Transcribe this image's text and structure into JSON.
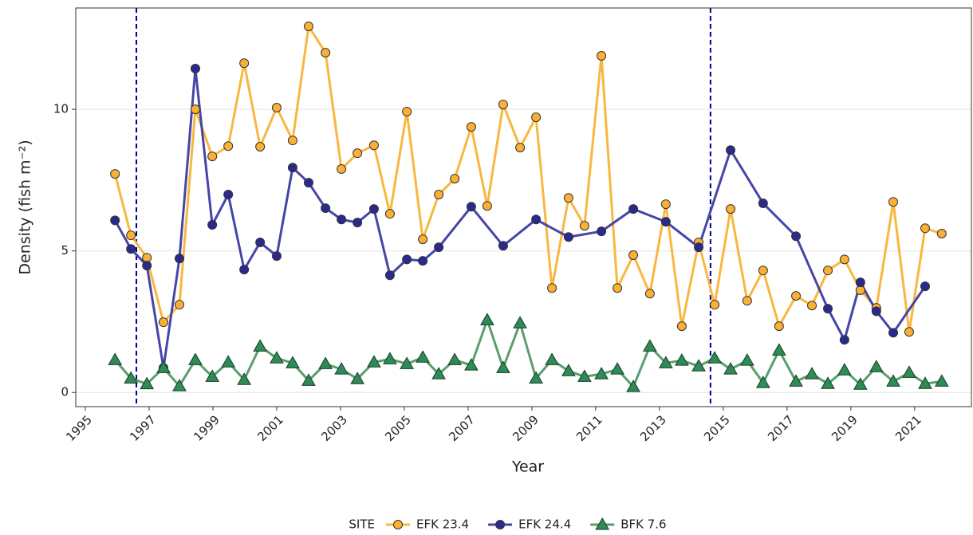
{
  "chart_data": {
    "type": "line",
    "x_label": "Year",
    "y_label": "Density (fish m⁻²)",
    "legend_title": "SITE",
    "legend": "bottom",
    "grid": true,
    "xlim": [
      1994.7,
      2022.78
    ],
    "ylim": [
      -0.5,
      13.58
    ],
    "xticks": [
      1995,
      1997,
      1999,
      2001,
      2003,
      2005,
      2007,
      2009,
      2011,
      2013,
      2015,
      2017,
      2019,
      2021
    ],
    "yticks": [
      0,
      5,
      10
    ],
    "vlines": [
      1996.6,
      2014.6
    ],
    "vline_color": "#00008b",
    "x": [
      1995.93,
      1996.43,
      1996.93,
      1997.45,
      1997.95,
      1998.45,
      1998.98,
      1999.48,
      1999.98,
      2000.48,
      2001.0,
      2001.5,
      2002.0,
      2002.53,
      2003.03,
      2003.53,
      2004.05,
      2004.55,
      2005.08,
      2005.58,
      2006.08,
      2006.58,
      2007.1,
      2007.6,
      2008.1,
      2008.63,
      2009.13,
      2009.63,
      2010.15,
      2010.65,
      2011.18,
      2011.68,
      2012.18,
      2012.7,
      2013.2,
      2013.7,
      2014.23,
      2014.73,
      2015.23,
      2015.75,
      2016.25,
      2016.75,
      2017.28,
      2017.78,
      2018.28,
      2018.8,
      2019.3,
      2019.8,
      2020.33,
      2020.83,
      2021.33,
      2021.85
    ],
    "series": [
      {
        "name": "EFK 23.4",
        "color": "#f8b73f",
        "marker_color": "#fbb034",
        "marker": "circle",
        "values": [
          7.72,
          5.55,
          4.76,
          2.48,
          3.1,
          10.0,
          8.34,
          8.7,
          11.63,
          8.68,
          10.06,
          8.9,
          12.93,
          12.0,
          7.89,
          8.45,
          8.73,
          6.31,
          9.92,
          5.41,
          6.99,
          7.55,
          9.38,
          6.59,
          10.17,
          8.65,
          9.72,
          3.69,
          6.87,
          5.89,
          11.89,
          3.69,
          4.85,
          3.49,
          6.65,
          2.34,
          5.3,
          3.1,
          6.48,
          3.24,
          4.31,
          2.34,
          3.41,
          3.07,
          4.31,
          4.7,
          3.61,
          2.99,
          6.73,
          2.14,
          5.8,
          5.61
        ]
      },
      {
        "name": "EFK 24.4",
        "color": "#4545a8",
        "marker_color": "#2a2a8e",
        "marker": "circle",
        "x": [
          1995.93,
          1996.43,
          1996.93,
          1997.45,
          1997.95,
          1998.45,
          1998.98,
          1999.48,
          1999.98,
          2000.48,
          2001.0,
          2001.5,
          2002.0,
          2002.53,
          2003.03,
          2003.53,
          2004.05,
          2004.55,
          2005.08,
          2005.58,
          2006.08,
          2007.1,
          2008.1,
          2009.13,
          2010.15,
          2011.18,
          2012.18,
          2013.2,
          2014.23,
          2015.23,
          2016.25,
          2017.28,
          2018.28,
          2018.8,
          2019.3,
          2019.8,
          2020.33,
          2021.33
        ],
        "values": [
          6.08,
          5.07,
          4.48,
          0.87,
          4.73,
          11.44,
          5.92,
          6.99,
          4.34,
          5.3,
          4.82,
          7.94,
          7.41,
          6.51,
          6.11,
          6.0,
          6.48,
          4.14,
          4.7,
          4.65,
          5.13,
          6.56,
          5.18,
          6.11,
          5.49,
          5.69,
          6.48,
          6.03,
          5.13,
          8.56,
          6.68,
          5.52,
          2.96,
          1.86,
          3.89,
          2.87,
          2.11,
          3.75
        ]
      },
      {
        "name": "BFK 7.6",
        "color": "#5a9e6e",
        "marker_color": "#2e8b57",
        "marker": "triangle",
        "values": [
          1.15,
          0.5,
          0.3,
          0.87,
          0.23,
          1.15,
          0.56,
          1.07,
          0.45,
          1.63,
          1.21,
          1.04,
          0.42,
          1.01,
          0.82,
          0.48,
          1.07,
          1.18,
          1.01,
          1.24,
          0.65,
          1.15,
          0.96,
          2.56,
          0.87,
          2.45,
          0.5,
          1.15,
          0.76,
          0.56,
          0.65,
          0.82,
          0.2,
          1.63,
          1.04,
          1.13,
          0.93,
          1.21,
          0.82,
          1.13,
          0.34,
          1.49,
          0.39,
          0.65,
          0.31,
          0.79,
          0.28,
          0.9,
          0.39,
          0.7,
          0.31,
          0.39
        ]
      }
    ]
  }
}
